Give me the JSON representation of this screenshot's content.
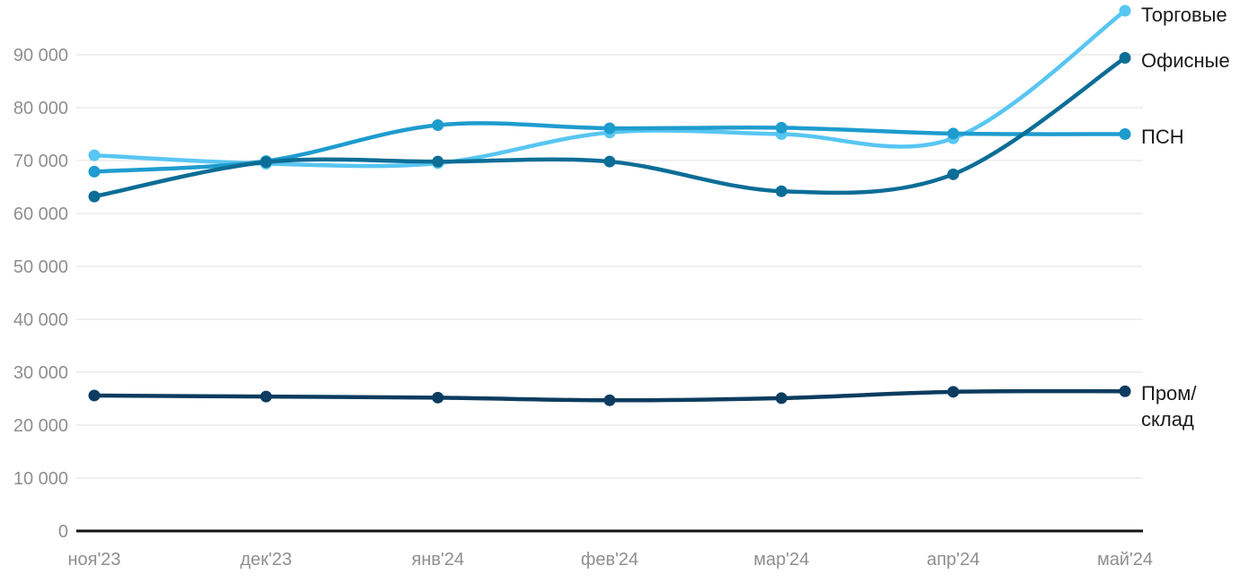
{
  "chart_data": {
    "type": "line",
    "title": "",
    "xlabel": "",
    "ylabel": "",
    "grid": true,
    "legend_position": "right-of-line-ends",
    "categories": [
      "ноя'23",
      "дек'23",
      "янв'24",
      "фев'24",
      "мар'24",
      "апр'24",
      "май'24"
    ],
    "series": [
      {
        "id": "torgovye",
        "name": "Торговые",
        "legend_label": "Торговые",
        "color": "#58C6F2",
        "values": [
          71000,
          69400,
          69500,
          75300,
          75000,
          74200,
          98300
        ]
      },
      {
        "id": "psn",
        "name": "ПСН",
        "legend_label": "ПСН",
        "color": "#1E9CCE",
        "values": [
          67900,
          69900,
          76700,
          76100,
          76200,
          75100,
          75000
        ]
      },
      {
        "id": "ofisnye",
        "name": "Офисные",
        "legend_label": "Офисные",
        "color": "#0C6D96",
        "values": [
          63200,
          69700,
          69800,
          69800,
          64200,
          67400,
          89400
        ]
      },
      {
        "id": "prom-sklad",
        "name": "Пром/склад",
        "legend_label": "Пром/\nсклад",
        "color": "#0C3C5F",
        "values": [
          25600,
          25400,
          25200,
          24700,
          25100,
          26300,
          26400
        ]
      }
    ],
    "y_axis": {
      "min": 0,
      "max": 100000,
      "tick_step": 10000,
      "ticks": [
        {
          "value": 0,
          "label": "0"
        },
        {
          "value": 10000,
          "label": "10 000"
        },
        {
          "value": 20000,
          "label": "20 000"
        },
        {
          "value": 30000,
          "label": "30 000"
        },
        {
          "value": 40000,
          "label": "40 000"
        },
        {
          "value": 50000,
          "label": "50 000"
        },
        {
          "value": 60000,
          "label": "60 000"
        },
        {
          "value": 70000,
          "label": "70 000"
        },
        {
          "value": 80000,
          "label": "80 000"
        },
        {
          "value": 90000,
          "label": "90 000"
        }
      ]
    },
    "colors": {
      "gridline": "#EBEBEB",
      "axis_line": "#141414",
      "tick_text": "#8F8F8F",
      "legend_text": "#1B1B1B",
      "background": "#FFFFFF"
    }
  }
}
